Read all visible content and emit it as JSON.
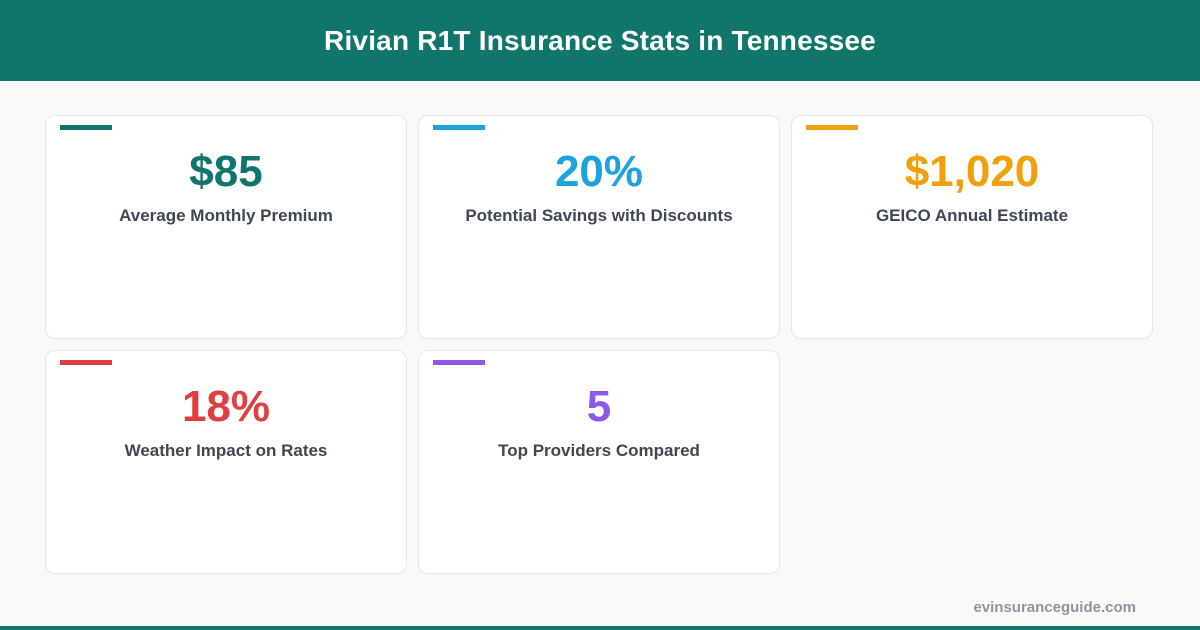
{
  "header": {
    "title": "Rivian R1T Insurance Stats in Tennessee"
  },
  "cards": [
    {
      "value": "$85",
      "label": "Average Monthly Premium",
      "color": "#10766c"
    },
    {
      "value": "20%",
      "label": "Potential Savings with Discounts",
      "color": "#1aa3dc"
    },
    {
      "value": "$1,020",
      "label": "GEICO Annual Estimate",
      "color": "#efa00b"
    },
    {
      "value": "18%",
      "label": "Weather Impact on Rates",
      "color": "#e03f3f"
    },
    {
      "value": "5",
      "label": "Top Providers Compared",
      "color": "#8e58e8"
    }
  ],
  "footer": {
    "site": "evinsuranceguide.com"
  },
  "colors": {
    "brand": "#10766c",
    "background": "#f8f9fb"
  }
}
